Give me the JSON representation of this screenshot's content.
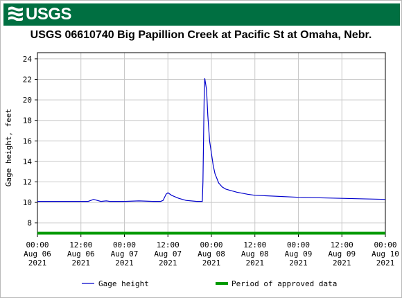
{
  "header": {
    "logo_text": "USGS"
  },
  "chart_data": {
    "type": "line",
    "title": "USGS 06610740 Big Papillion Creek at Pacific St at Omaha, Nebr.",
    "xlabel": "",
    "ylabel": "Gage height, feet",
    "ylim": [
      6.9,
      24.6
    ],
    "xlim_hours": [
      0,
      96
    ],
    "grid": true,
    "legend_placement": "bottom",
    "yticks": [
      "8",
      "10",
      "12",
      "14",
      "16",
      "18",
      "20",
      "22",
      "24"
    ],
    "ytick_values": [
      8,
      10,
      12,
      14,
      16,
      18,
      20,
      22,
      24
    ],
    "xticks": [
      [
        "00:00",
        "Aug 06",
        "2021"
      ],
      [
        "12:00",
        "Aug 06",
        "2021"
      ],
      [
        "00:00",
        "Aug 07",
        "2021"
      ],
      [
        "12:00",
        "Aug 07",
        "2021"
      ],
      [
        "00:00",
        "Aug 08",
        "2021"
      ],
      [
        "12:00",
        "Aug 08",
        "2021"
      ],
      [
        "00:00",
        "Aug 09",
        "2021"
      ],
      [
        "12:00",
        "Aug 09",
        "2021"
      ],
      [
        "00:00",
        "Aug 10",
        "2021"
      ]
    ],
    "series": [
      {
        "name": "Gage height",
        "color": "#0000cc",
        "x": [
          "2021-08-06 00:00",
          "2021-08-06 10:00",
          "2021-08-06 14:00",
          "2021-08-06 15:30",
          "2021-08-06 16:30",
          "2021-08-06 17:30",
          "2021-08-06 19:00",
          "2021-08-06 20:00",
          "2021-08-07 00:00",
          "2021-08-07 04:00",
          "2021-08-07 08:00",
          "2021-08-07 10:00",
          "2021-08-07 10:40",
          "2021-08-07 11:30",
          "2021-08-07 12:00",
          "2021-08-07 13:00",
          "2021-08-07 15:00",
          "2021-08-07 17:00",
          "2021-08-07 20:00",
          "2021-08-07 21:00",
          "2021-08-07 21:30",
          "2021-08-07 21:40",
          "2021-08-07 22:00",
          "2021-08-07 22:10",
          "2021-08-07 22:40",
          "2021-08-07 23:00",
          "2021-08-07 23:30",
          "2021-08-08 00:00",
          "2021-08-08 00:30",
          "2021-08-08 01:00",
          "2021-08-08 02:00",
          "2021-08-08 03:00",
          "2021-08-08 04:00",
          "2021-08-08 05:00",
          "2021-08-08 07:00",
          "2021-08-08 10:00",
          "2021-08-08 12:00",
          "2021-08-09 00:00",
          "2021-08-09 12:00",
          "2021-08-10 00:00"
        ],
        "y": [
          10.1,
          10.1,
          10.1,
          10.3,
          10.2,
          10.1,
          10.15,
          10.1,
          10.1,
          10.15,
          10.1,
          10.1,
          10.2,
          10.8,
          10.95,
          10.7,
          10.4,
          10.2,
          10.1,
          10.1,
          10.1,
          12.0,
          20.0,
          22.1,
          21.0,
          18.5,
          16.0,
          14.8,
          13.6,
          12.8,
          11.9,
          11.5,
          11.3,
          11.2,
          11.0,
          10.8,
          10.7,
          10.5,
          10.4,
          10.3
        ]
      },
      {
        "name": "Period of approved data",
        "color": "#009900",
        "x": [
          "2021-08-06 00:00",
          "2021-08-10 00:00"
        ],
        "y": [
          7.0,
          7.0
        ]
      }
    ]
  }
}
